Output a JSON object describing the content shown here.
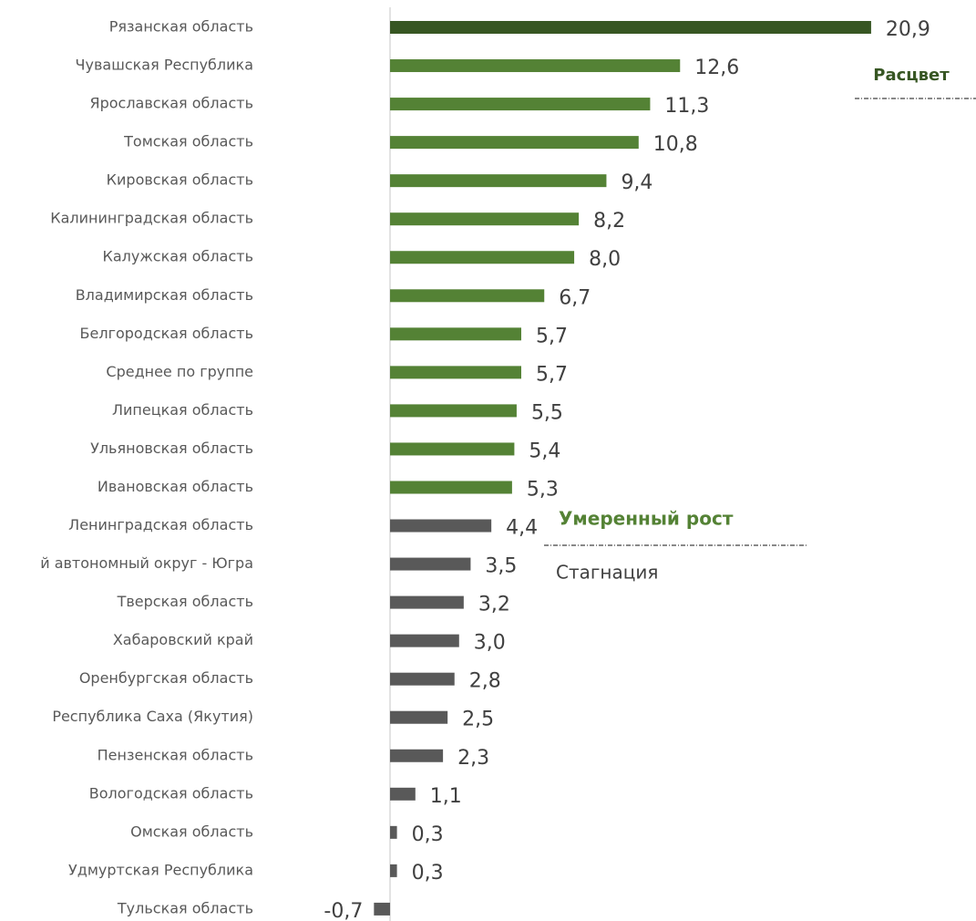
{
  "chart_data": {
    "type": "barh",
    "categories": [
      "Рязанская область",
      "Чувашская Республика",
      "Ярославская область",
      "Томская область",
      "Кировская область",
      "Калининградская область",
      "Калужская область",
      "Владимирская область",
      "Белгородская область",
      "Среднее по группе",
      "Липецкая область",
      "Ульяновская область",
      "Ивановская область",
      "Ленинградская область",
      "й автономный округ - Югра",
      "Тверская область",
      "Хабаровский край",
      "Оренбургская область",
      "Республика Саха (Якутия)",
      "Пензенская область",
      "Вологодская область",
      "Омская область",
      "Удмуртская Республика",
      "Тульская область"
    ],
    "values": [
      20.9,
      12.6,
      11.3,
      10.8,
      9.4,
      8.2,
      8.0,
      6.7,
      5.7,
      5.7,
      5.5,
      5.4,
      5.3,
      4.4,
      3.5,
      3.2,
      3.0,
      2.8,
      2.5,
      2.3,
      1.1,
      0.3,
      0.3,
      -0.7
    ],
    "value_labels": [
      "20,9",
      "12,6",
      "11,3",
      "10,8",
      "9,4",
      "8,2",
      "8,0",
      "6,7",
      "5,7",
      "5,7",
      "5,5",
      "5,4",
      "5,3",
      "4,4",
      "3,5",
      "3,2",
      "3,0",
      "2,8",
      "2,5",
      "2,3",
      "1,1",
      "0,3",
      "0,3",
      "-0,7"
    ],
    "colors": [
      "#375623",
      "#548235",
      "#548235",
      "#548235",
      "#548235",
      "#548235",
      "#548235",
      "#548235",
      "#548235",
      "#548235",
      "#548235",
      "#548235",
      "#548235",
      "#595959",
      "#595959",
      "#595959",
      "#595959",
      "#595959",
      "#595959",
      "#595959",
      "#595959",
      "#595959",
      "#595959",
      "#595959"
    ],
    "xlim": [
      -2,
      22
    ],
    "annotations": [
      "Расцвет",
      "Умеренный рост",
      "Стагнация"
    ]
  }
}
